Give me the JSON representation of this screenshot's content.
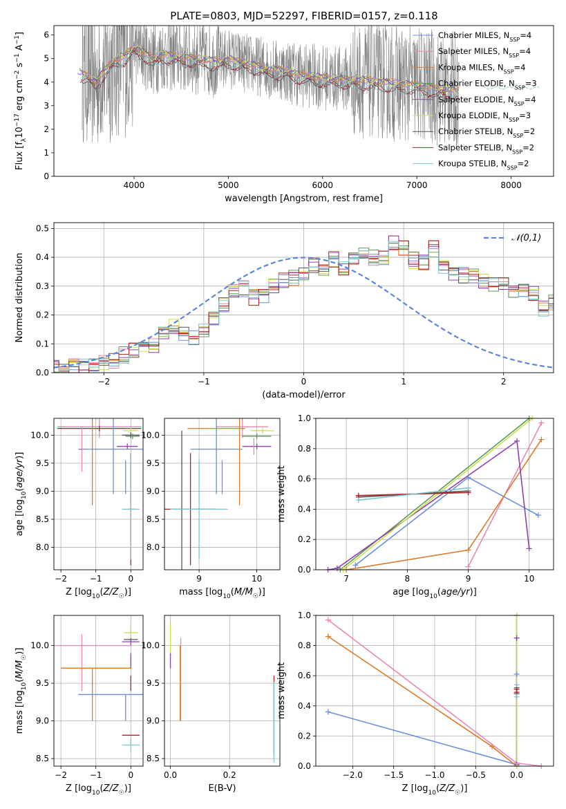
{
  "colors": {
    "Chabrier MILES": "#6a8fdf",
    "Salpeter MILES": "#e887b7",
    "Kroupa MILES": "#dd7a2a",
    "Chabrier ELODIE": "#5e9a57",
    "Salpeter ELODIE": "#8e3fb0",
    "Kroupa ELODIE": "#c6e14a",
    "Chabrier STELIB": "#555555",
    "Salpeter STELIB": "#b22020",
    "Kroupa STELIB": "#7ec4d2",
    "data": "#808080",
    "normal": "#5b87d6"
  },
  "chart_data": [
    {
      "type": "line",
      "title": "PLATE=0803, MJD=52297, FIBERID=0157, z=0.118",
      "xlabel": "wavelength [Angstrom, rest frame]",
      "ylabel": "Flux [f_λ 10^-17 erg cm^-2 s^-1 A^-1]",
      "xlim": [
        3150,
        8450
      ],
      "ylim": [
        0,
        6.4
      ],
      "xticks": [
        4000,
        5000,
        6000,
        7000,
        8000
      ],
      "yticks": [
        0,
        1,
        2,
        3,
        4,
        5,
        6
      ],
      "grid": false,
      "legend": "upper right",
      "legend_entries": [
        {
          "model": "Chabrier MILES",
          "nssp": "4"
        },
        {
          "model": "Salpeter MILES",
          "nssp": "4"
        },
        {
          "model": "Kroupa MILES",
          "nssp": "4"
        },
        {
          "model": "Chabrier ELODIE",
          "nssp": "3"
        },
        {
          "model": "Salpeter ELODIE",
          "nssp": "4"
        },
        {
          "model": "Kroupa ELODIE",
          "nssp": "3"
        },
        {
          "model": "Chabrier STELIB",
          "nssp": "2"
        },
        {
          "model": "Salpeter STELIB",
          "nssp": "2"
        },
        {
          "model": "Kroupa STELIB",
          "nssp": "2"
        }
      ],
      "model_fit_trend": {
        "x": [
          3400,
          3500,
          3600,
          3700,
          3800,
          3900,
          4000,
          4100,
          4200,
          4300,
          4500,
          4700,
          4900,
          5000,
          5200,
          5400,
          5600,
          5800,
          6000,
          6200,
          6400,
          6600,
          6800,
          7000,
          7200,
          7400
        ],
        "y": [
          4.5,
          4.3,
          4.0,
          4.6,
          5.0,
          5.1,
          5.5,
          5.3,
          5.0,
          5.2,
          5.1,
          5.0,
          4.9,
          5.0,
          4.8,
          4.6,
          4.5,
          4.3,
          4.2,
          4.15,
          4.1,
          4.05,
          3.95,
          3.9,
          3.75,
          3.65
        ]
      },
      "data_extent": {
        "x": [
          3450,
          8300
        ]
      }
    },
    {
      "type": "histogram",
      "xlabel": "(data-model)/error",
      "ylabel": "Normed distribution",
      "xlim": [
        -2.5,
        2.5
      ],
      "ylim": [
        0,
        0.52
      ],
      "xticks": [
        -2,
        -1,
        0,
        1,
        2
      ],
      "yticks": [
        0.0,
        0.1,
        0.2,
        0.3,
        0.4,
        0.5
      ],
      "grid": true,
      "legend": "upper right",
      "legend_label": "𝒩(0,1)",
      "bin_width": 0.1,
      "mean_density": [
        0.02,
        0.025,
        0.025,
        0.02,
        0.03,
        0.04,
        0.045,
        0.06,
        0.075,
        0.09,
        0.1,
        0.13,
        0.16,
        0.14,
        0.12,
        0.15,
        0.19,
        0.23,
        0.28,
        0.29,
        0.26,
        0.27,
        0.3,
        0.32,
        0.33,
        0.35,
        0.37,
        0.36,
        0.39,
        0.36,
        0.4,
        0.42,
        0.4,
        0.4,
        0.45,
        0.43,
        0.39,
        0.38,
        0.43,
        0.36,
        0.35,
        0.34,
        0.33,
        0.32,
        0.31,
        0.3,
        0.28,
        0.29,
        0.27,
        0.22,
        0.24,
        0.21,
        0.2,
        0.17,
        0.18,
        0.13,
        0.12,
        0.11,
        0.08,
        0.07,
        0.07,
        0.06,
        0.04,
        0.04,
        0.03,
        0.035,
        0.03,
        0.025,
        0.02,
        0.015
      ]
    },
    {
      "type": "errorbar",
      "xlabel": "Z [log10(Z/Z☉)]",
      "ylabel": "age  [log10(age/yr)]",
      "xlim": [
        -2.2,
        0.35
      ],
      "ylim": [
        7.6,
        10.3
      ],
      "xticks": [
        -2,
        -1,
        0
      ],
      "yticks": [
        8.0,
        8.5,
        9.0,
        9.5,
        10.0
      ],
      "grid": true
    },
    {
      "type": "errorbar",
      "xlabel": "mass [log10(M/M☉)]",
      "ylabel": "",
      "xlim": [
        8.4,
        10.4
      ],
      "ylim": [
        7.6,
        10.3
      ],
      "xticks": [
        9,
        10
      ],
      "yticks": [
        8.0,
        8.5,
        9.0,
        9.5,
        10.0
      ],
      "grid": true
    },
    {
      "type": "line",
      "xlabel": "age  [log10(age/yr)]",
      "ylabel": "mass weight",
      "xlim": [
        6.5,
        10.4
      ],
      "ylim": [
        0,
        1
      ],
      "xticks": [
        7,
        8,
        9,
        10
      ],
      "yticks": [
        0.0,
        0.2,
        0.4,
        0.6,
        0.8,
        1.0
      ],
      "grid": true,
      "series": [
        {
          "model": "Chabrier MILES",
          "x": [
            7.15,
            9.0,
            10.15
          ],
          "y": [
            0.03,
            0.61,
            0.36
          ]
        },
        {
          "model": "Salpeter MILES",
          "x": [
            9.0,
            10.2
          ],
          "y": [
            0.02,
            0.97
          ]
        },
        {
          "model": "Kroupa MILES",
          "x": [
            7.0,
            9.0,
            10.2
          ],
          "y": [
            0.0,
            0.13,
            0.86
          ]
        },
        {
          "model": "Chabrier ELODIE",
          "x": [
            6.9,
            10.0
          ],
          "y": [
            0.0,
            1.0
          ]
        },
        {
          "model": "Salpeter ELODIE",
          "x": [
            6.7,
            6.85,
            9.8,
            10.0
          ],
          "y": [
            0.0,
            0.01,
            0.85,
            0.14
          ]
        },
        {
          "model": "Kroupa ELODIE",
          "x": [
            6.95,
            10.05
          ],
          "y": [
            0.0,
            1.0
          ]
        },
        {
          "model": "Chabrier STELIB",
          "x": [
            7.2,
            9.0
          ],
          "y": [
            0.48,
            0.52
          ]
        },
        {
          "model": "Salpeter STELIB",
          "x": [
            7.2,
            9.0
          ],
          "y": [
            0.49,
            0.51
          ]
        },
        {
          "model": "Kroupa STELIB",
          "x": [
            7.2,
            9.0
          ],
          "y": [
            0.46,
            0.54
          ]
        }
      ]
    },
    {
      "type": "errorbar",
      "xlabel": "Z [log10(Z/Z☉)]",
      "ylabel": "mass [log10(M/M☉)]",
      "xlim": [
        -2.2,
        0.35
      ],
      "ylim": [
        8.4,
        10.4
      ],
      "xticks": [
        -2,
        -1,
        0
      ],
      "yticks": [
        8.5,
        9.0,
        9.5,
        10.0
      ],
      "grid": true
    },
    {
      "type": "errorbar",
      "xlabel": "E(B-V)",
      "ylabel": "",
      "xlim": [
        -0.02,
        0.37
      ],
      "ylim": [
        8.4,
        10.4
      ],
      "xticks": [
        0.0,
        0.2
      ],
      "yticks": [
        8.5,
        9.0,
        9.5,
        10.0
      ],
      "grid": true
    },
    {
      "type": "line",
      "xlabel": "Z [log10(Z/Z☉)]",
      "ylabel": "mass weight",
      "xlim": [
        -2.45,
        0.45
      ],
      "ylim": [
        0,
        1
      ],
      "xticks": [
        -2.0,
        -1.5,
        -1.0,
        -0.5,
        0.0
      ],
      "yticks": [
        0.0,
        0.2,
        0.4,
        0.6,
        0.8,
        1.0
      ],
      "grid": true,
      "series": [
        {
          "model": "Chabrier MILES",
          "x": [
            -2.3,
            0.0,
            0.0
          ],
          "y": [
            0.36,
            0.01,
            0.61
          ]
        },
        {
          "model": "Salpeter MILES",
          "x": [
            -2.3,
            0.0,
            0.3
          ],
          "y": [
            0.97,
            0.02,
            0.0
          ]
        },
        {
          "model": "Kroupa MILES",
          "x": [
            -2.3,
            -0.3,
            0.0
          ],
          "y": [
            0.86,
            0.13,
            0.0
          ]
        },
        {
          "model": "Chabrier ELODIE",
          "x": [
            0.0,
            0.0
          ],
          "y": [
            0.0,
            1.0
          ]
        },
        {
          "model": "Salpeter ELODIE",
          "x": [
            0.0,
            0.0
          ],
          "y": [
            0.01,
            0.85
          ]
        },
        {
          "model": "Kroupa ELODIE",
          "x": [
            0.0,
            0.0
          ],
          "y": [
            0.0,
            1.0
          ]
        },
        {
          "model": "Chabrier STELIB",
          "x": [
            0.0,
            0.0
          ],
          "y": [
            0.48,
            0.52
          ]
        },
        {
          "model": "Salpeter STELIB",
          "x": [
            0.0,
            0.0
          ],
          "y": [
            0.49,
            0.51
          ]
        },
        {
          "model": "Kroupa STELIB",
          "x": [
            0.0,
            0.0
          ],
          "y": [
            0.46,
            0.54
          ]
        }
      ]
    }
  ]
}
